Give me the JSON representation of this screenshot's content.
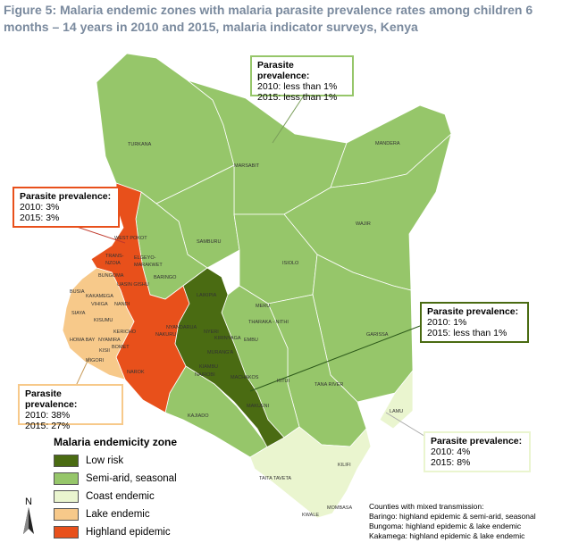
{
  "title": "Figure 5: Malaria endemic zones with malaria parasite prevalence rates among children 6 months – 14 years in 2010 and 2015, malaria indicator surveys, Kenya",
  "colors": {
    "low_risk": "#4a6b12",
    "semi_arid": "#96c66a",
    "coast": "#eaf5cf",
    "lake": "#f7c98a",
    "highland": "#e8501b",
    "border": "#ffffff"
  },
  "callouts": {
    "north": {
      "heading": "Parasite prevalence:",
      "line1": "2010: less than 1%",
      "line2": "2015: less than 1%",
      "border": "#96c66a"
    },
    "highland": {
      "heading": "Parasite prevalence:",
      "line1": "2010: 3%",
      "line2": "2015: 3%",
      "border": "#e8501b"
    },
    "lowrisk": {
      "heading": "Parasite prevalence:",
      "line1": "2010: 1%",
      "line2": "2015: less than 1%",
      "border": "#4a6b12"
    },
    "lake": {
      "heading": "Parasite prevalence:",
      "line1": "2010: 38%",
      "line2": "2015: 27%",
      "border": "#f7c98a"
    },
    "coast": {
      "heading": "Parasite prevalence:",
      "line1": "2010: 4%",
      "line2": "2015: 8%",
      "border": "#eaf5cf"
    }
  },
  "legend": {
    "title": "Malaria endemicity zone",
    "items": [
      {
        "label": "Low risk",
        "color": "#4a6b12"
      },
      {
        "label": "Semi-arid, seasonal",
        "color": "#96c66a"
      },
      {
        "label": "Coast endemic",
        "color": "#eaf5cf"
      },
      {
        "label": "Lake endemic",
        "color": "#f7c98a"
      },
      {
        "label": "Highland epidemic",
        "color": "#e8501b"
      }
    ]
  },
  "mixed": {
    "heading": "Counties with mixed transmission:",
    "lines": [
      "Baringo: highland epidemic & semi-arid, seasonal",
      "Bungoma: highland epidemic & lake endemic",
      "Kakamega:  highland epidemic & lake endemic"
    ]
  },
  "north_label": "N",
  "counties": {
    "turkana": "TURKANA",
    "marsabit": "MARSABIT",
    "mandera": "MANDERA",
    "wajir": "WAJIR",
    "samburu": "SAMBURU",
    "isiolo": "ISIOLO",
    "west_pokot": "WEST POKOT",
    "trans_nzoia": "TRANS-\nNZOIA",
    "elgeyo": "ELGEYO-\nMARAKWET",
    "baringo": "BARINGO",
    "uasin": "UASIN GISHU",
    "bungoma": "BUNGOMA",
    "busia": "BUSIA",
    "kakamega": "KAKAMEGA",
    "vihiga": "VIHIGA",
    "siaya": "SIAYA",
    "kisumu": "KISUMU",
    "nandi": "NANDI",
    "laikipia": "LAIKIPIA",
    "meru": "MERU",
    "nakuru": "NAKURU",
    "nyandarua": "NYANDARUA",
    "nyeri": "NYERI",
    "kirinyaga": "KIRINYAGA",
    "tharaka": "THARAKA - NITHI",
    "embu": "EMBU",
    "homabay": "HOMA BAY",
    "kericho": "KERICHO",
    "bomet": "BOMET",
    "nyamira": "NYAMIRA",
    "kisii": "KISII",
    "migori": "MIGORI",
    "muranga": "MURANG'A",
    "kiambu": "KIAMBU",
    "nairobi": "NAIROBI",
    "machakos": "MACHAKOS",
    "kitui": "KITUI",
    "garissa": "GARISSA",
    "narok": "NAROK",
    "kajiado": "KAJIADO",
    "makueni": "MAKUENI",
    "tana_river": "TANA RIVER",
    "lamu": "LAMU",
    "kilifi": "KILIFI",
    "taita": "TAITA TAVETA",
    "mombasa": "MOMBASA",
    "kwale": "KWALE"
  }
}
